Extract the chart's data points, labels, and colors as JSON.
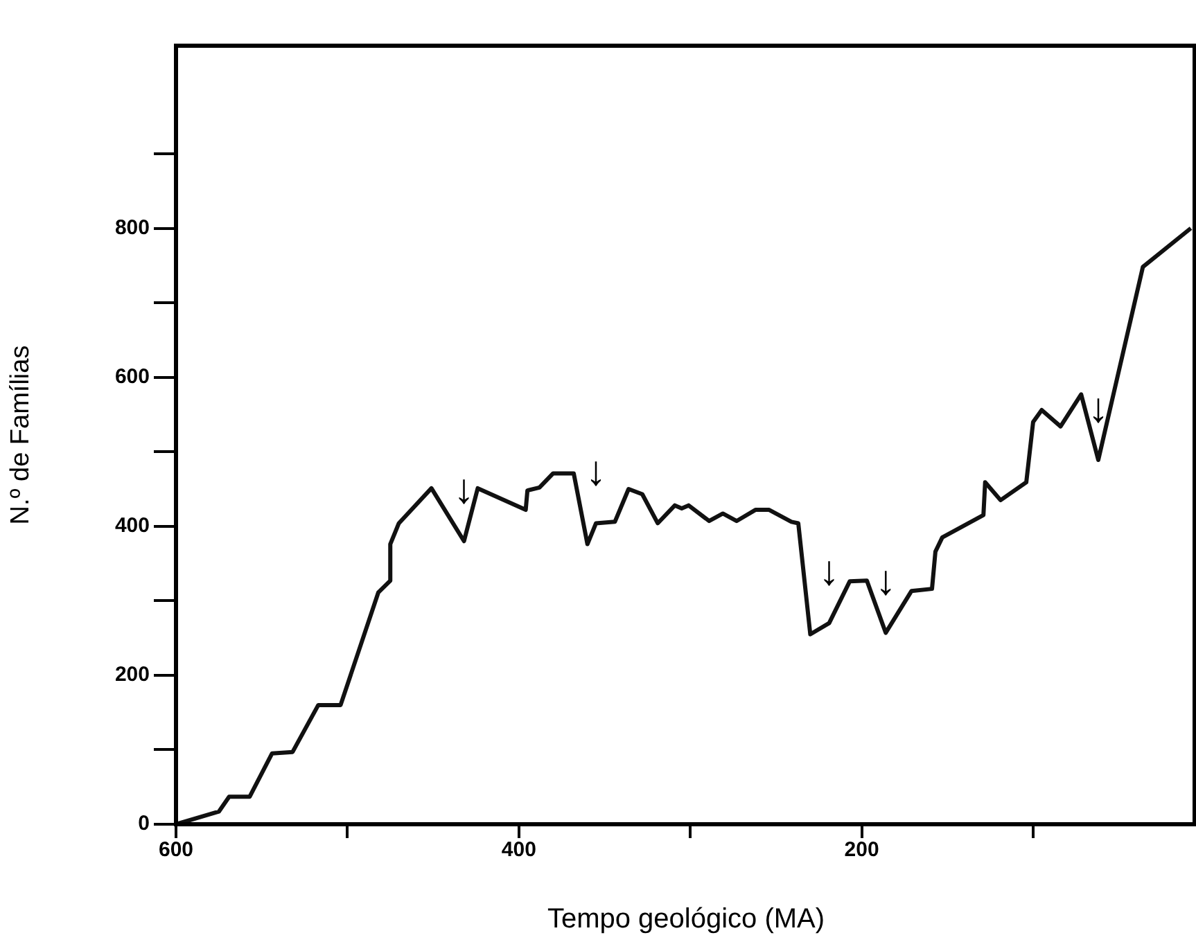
{
  "chart_data": {
    "type": "line",
    "xlabel": "Tempo geológico (MA)",
    "ylabel": "N.º de Famílias",
    "x": [
      600,
      575,
      569,
      557,
      544,
      532,
      517,
      504,
      482,
      475,
      475,
      470,
      451,
      432,
      424,
      396,
      395,
      388,
      380,
      368,
      360,
      355,
      344,
      336,
      328,
      319,
      309,
      305,
      301,
      289,
      281,
      273,
      262,
      254,
      241,
      237,
      230,
      219,
      207,
      197,
      186,
      171,
      159,
      157,
      153,
      129,
      128,
      119,
      104,
      100,
      95,
      84,
      72,
      62,
      36,
      8
    ],
    "series": [
      {
        "color": "#111111",
        "values": [
          0,
          17,
          37,
          37,
          95,
          97,
          160,
          160,
          311,
          327,
          376,
          404,
          451,
          380,
          451,
          422,
          448,
          452,
          471,
          471,
          376,
          404,
          406,
          450,
          443,
          404,
          428,
          424,
          428,
          407,
          417,
          407,
          422,
          422,
          406,
          404,
          255,
          270,
          326,
          327,
          257,
          313,
          316,
          366,
          385,
          415,
          459,
          435,
          459,
          540,
          556,
          534,
          577,
          489,
          748,
          800
        ]
      }
    ],
    "xlim": [
      600,
      5
    ],
    "ylim": [
      0,
      1045
    ],
    "xticks": [
      600,
      {
        "value": 500,
        "label": null
      },
      400,
      {
        "value": 300,
        "label": null
      },
      200,
      {
        "value": 100,
        "label": null
      }
    ],
    "yticks": [
      0,
      {
        "value": 100,
        "label": null
      },
      200,
      {
        "value": 300,
        "label": null
      },
      400,
      {
        "value": 500,
        "label": null
      },
      600,
      {
        "value": 700,
        "label": null
      },
      800,
      {
        "value": 900,
        "label": null
      }
    ],
    "annotations": [
      {
        "text": "↓",
        "x": 432,
        "y": 380
      },
      {
        "text": "↓",
        "x": 355,
        "y": 404
      },
      {
        "text": "↓",
        "x": 219,
        "y": 270
      },
      {
        "text": "↓",
        "x": 186,
        "y": 257
      },
      {
        "text": "↓",
        "x": 62,
        "y": 489
      }
    ],
    "grid": false,
    "legend": false,
    "marker": "none",
    "line_style": "solid"
  }
}
